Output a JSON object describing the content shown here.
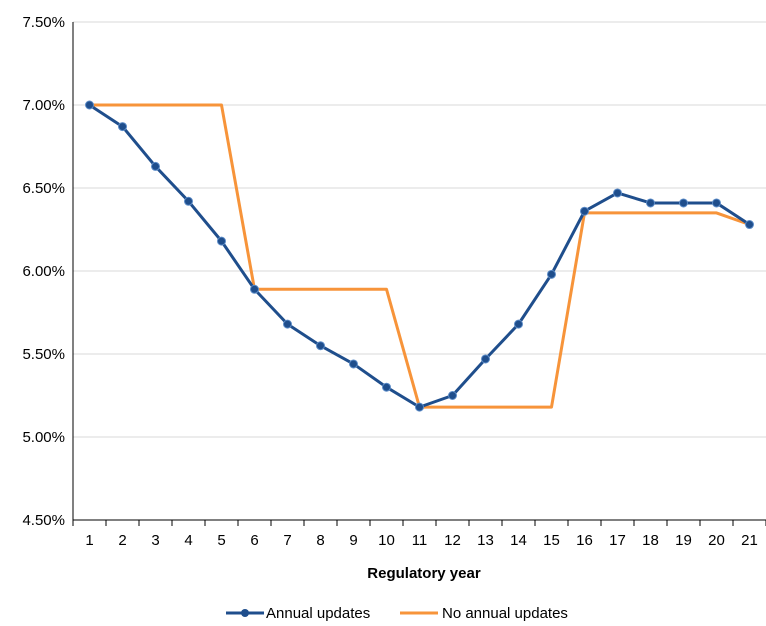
{
  "chart_data": {
    "type": "line",
    "title": "",
    "xlabel": "Regulatory year",
    "ylabel": "",
    "x": [
      1,
      2,
      3,
      4,
      5,
      6,
      7,
      8,
      9,
      10,
      11,
      12,
      13,
      14,
      15,
      16,
      17,
      18,
      19,
      20,
      21
    ],
    "ylim": [
      4.5,
      7.5
    ],
    "yticks": [
      "4.50%",
      "5.00%",
      "5.50%",
      "6.00%",
      "6.50%",
      "7.00%",
      "7.50%"
    ],
    "ytick_values": [
      4.5,
      5.0,
      5.5,
      6.0,
      6.5,
      7.0,
      7.5
    ],
    "grid": "horizontal",
    "legend_position": "bottom",
    "series": [
      {
        "name": "Annual updates",
        "color": "#1f4e8c",
        "markers": true,
        "values": [
          7.0,
          6.87,
          6.63,
          6.42,
          6.18,
          5.89,
          5.68,
          5.55,
          5.44,
          5.3,
          5.18,
          5.25,
          5.47,
          5.68,
          5.98,
          6.36,
          6.47,
          6.41,
          6.41,
          6.41,
          6.28
        ]
      },
      {
        "name": "No annual updates",
        "color": "#f7943a",
        "markers": false,
        "values": [
          7.0,
          7.0,
          7.0,
          7.0,
          7.0,
          5.89,
          5.89,
          5.89,
          5.89,
          5.89,
          5.18,
          5.18,
          5.18,
          5.18,
          5.18,
          6.35,
          6.35,
          6.35,
          6.35,
          6.35,
          6.28
        ]
      }
    ]
  }
}
